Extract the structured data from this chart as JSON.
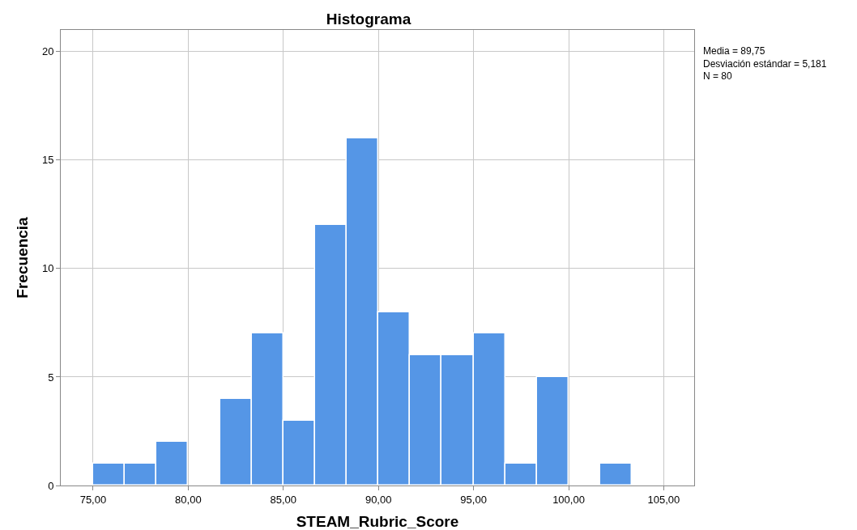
{
  "chart_data": {
    "type": "histogram",
    "title": "Histograma",
    "xlabel": "STEAM_Rubric_Score",
    "ylabel": "Frecuencia",
    "bins": [
      75,
      76.67,
      78.33,
      80,
      81.67,
      83.33,
      85,
      86.67,
      88.33,
      90,
      91.67,
      93.33,
      95,
      96.67,
      98.33,
      100,
      101.67,
      103.33
    ],
    "values": [
      1,
      1,
      2,
      0,
      4,
      7,
      3,
      12,
      16,
      8,
      6,
      6,
      7,
      1,
      5,
      0,
      1
    ],
    "color": "#5596e6",
    "xlim": [
      73.3,
      106.6
    ],
    "xticks": [
      {
        "value": 75,
        "label": "75,00"
      },
      {
        "value": 80,
        "label": "80,00"
      },
      {
        "value": 85,
        "label": "85,00"
      },
      {
        "value": 90,
        "label": "90,00"
      },
      {
        "value": 95,
        "label": "95,00"
      },
      {
        "value": 100,
        "label": "100,00"
      },
      {
        "value": 105,
        "label": "105,00"
      }
    ],
    "ylim": [
      0,
      21
    ],
    "yticks": [
      0,
      5,
      10,
      15,
      20
    ],
    "grid": true,
    "annotations": [
      "Media = 89,75",
      "Desviación estándar = 5,181",
      "N = 80"
    ]
  }
}
